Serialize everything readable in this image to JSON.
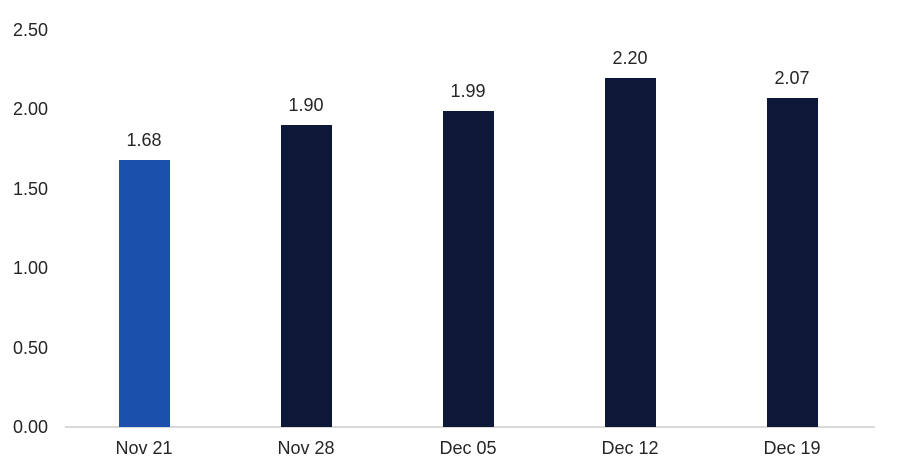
{
  "chart_data": {
    "type": "bar",
    "title": "",
    "xlabel": "",
    "ylabel": "",
    "categories": [
      "Nov 21",
      "Nov 28",
      "Dec 05",
      "Dec 12",
      "Dec 19"
    ],
    "values": [
      1.68,
      1.9,
      1.99,
      2.2,
      2.07
    ],
    "value_labels": [
      "1.68",
      "1.90",
      "1.99",
      "2.20",
      "2.07"
    ],
    "bar_colors": [
      "#1B51AC",
      "#0D1838",
      "#0D1838",
      "#0D1838",
      "#0D1838"
    ],
    "highlight_color": "#1B51AC",
    "default_bar_color": "#0D1838",
    "ylim": [
      0,
      2.5
    ],
    "yticks": [
      0.0,
      0.5,
      1.0,
      1.5,
      2.0,
      2.5
    ],
    "ytick_labels": [
      "0.00",
      "0.50",
      "1.00",
      "1.50",
      "2.00",
      "2.50"
    ],
    "grid": false,
    "legend": false,
    "axis_line_color": "#D9D9D9",
    "text_color": "#262626"
  }
}
